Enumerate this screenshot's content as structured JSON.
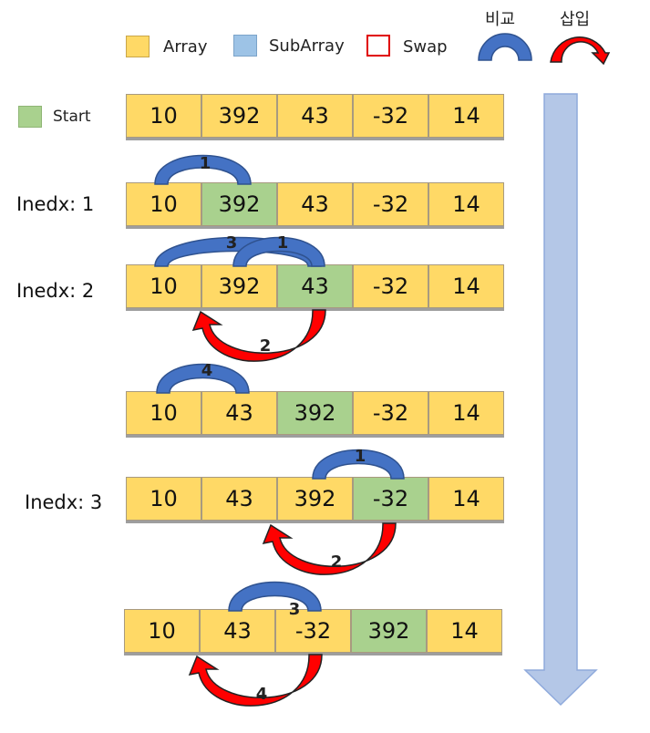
{
  "legend": {
    "array": "Array",
    "subarray": "SubArray",
    "swap": "Swap",
    "compare": "비교",
    "insert": "삽입",
    "start": "Start"
  },
  "colors": {
    "array": "#ffd966",
    "subarray_legend": "#9dc3e6",
    "sorted": "#a9d18e",
    "swap_border": "#e00000",
    "compare_arc": "#4472c4",
    "insert_arrow": "#ff0000",
    "flow_arrow": "#b4c7e7"
  },
  "rows": [
    {
      "label": "",
      "values": [
        "10",
        "392",
        "43",
        "-32",
        "14"
      ],
      "sorted_index": null
    },
    {
      "label": "Inedx: 1",
      "values": [
        "10",
        "392",
        "43",
        "-32",
        "14"
      ],
      "sorted_index": 1
    },
    {
      "label": "Inedx: 2",
      "values": [
        "10",
        "392",
        "43",
        "-32",
        "14"
      ],
      "sorted_index": 2
    },
    {
      "label": "",
      "values": [
        "10",
        "43",
        "392",
        "-32",
        "14"
      ],
      "sorted_index": 2
    },
    {
      "label": "Inedx: 3",
      "values": [
        "10",
        "43",
        "392",
        "-32",
        "14"
      ],
      "sorted_index": 3
    },
    {
      "label": "",
      "values": [
        "10",
        "43",
        "-32",
        "392",
        "14"
      ],
      "sorted_index": 3
    }
  ],
  "step_numbers": [
    "1",
    "3",
    "1",
    "2",
    "4",
    "1",
    "2",
    "3",
    "4"
  ]
}
